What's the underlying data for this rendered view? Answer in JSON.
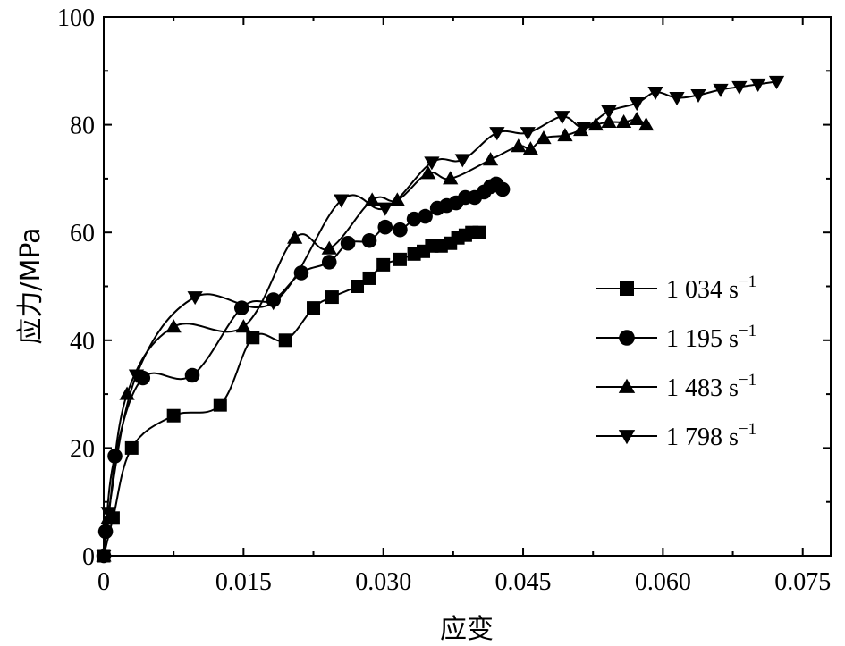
{
  "chart_data": {
    "type": "line",
    "xlabel": "应变",
    "ylabel": "应力/MPa",
    "xlim": [
      0,
      0.078
    ],
    "ylim": [
      0,
      100
    ],
    "xticks": [
      0,
      0.015,
      0.03,
      0.045,
      0.06,
      0.075
    ],
    "xtick_labels": [
      "0",
      "0.015",
      "0.030",
      "0.045",
      "0.060",
      "0.075"
    ],
    "yticks": [
      0,
      20,
      40,
      60,
      80,
      100
    ],
    "ytick_labels": [
      "0",
      "20",
      "40",
      "60",
      "80",
      "100"
    ],
    "grid": false,
    "legend_position": "right",
    "series": [
      {
        "name": "1 034 s",
        "name_sup": "−1",
        "marker": "square",
        "x": [
          0,
          0.001,
          0.003,
          0.0075,
          0.0125,
          0.016,
          0.0195,
          0.0225,
          0.0245,
          0.0272,
          0.0285,
          0.03,
          0.0318,
          0.0333,
          0.0343,
          0.0352,
          0.0362,
          0.0372,
          0.038,
          0.0388,
          0.0395,
          0.0403
        ],
        "y": [
          0,
          7,
          20,
          26,
          28,
          40.5,
          40,
          46,
          48,
          50,
          51.5,
          54,
          55,
          56,
          56.5,
          57.5,
          57.5,
          58,
          59,
          59.5,
          60,
          60
        ]
      },
      {
        "name": "1 195 s",
        "name_sup": "−1",
        "marker": "circle",
        "x": [
          0,
          0.0002,
          0.0012,
          0.0042,
          0.0095,
          0.0148,
          0.0182,
          0.0212,
          0.0242,
          0.0262,
          0.0285,
          0.0302,
          0.0318,
          0.0333,
          0.0345,
          0.0358,
          0.0368,
          0.0378,
          0.0388,
          0.0398,
          0.0408,
          0.0415,
          0.0421,
          0.0428
        ],
        "y": [
          0,
          4.5,
          18.5,
          33,
          33.5,
          46,
          47.5,
          52.5,
          54.5,
          58,
          58.5,
          61,
          60.5,
          62.5,
          63,
          64.5,
          65,
          65.5,
          66.5,
          66.5,
          67.5,
          68.5,
          69,
          68
        ]
      },
      {
        "name": "1 483 s",
        "name_sup": "−1",
        "marker": "triangle-up",
        "x": [
          0,
          0.0005,
          0.0025,
          0.0075,
          0.015,
          0.0205,
          0.0242,
          0.0288,
          0.0315,
          0.0348,
          0.0372,
          0.0415,
          0.0445,
          0.0458,
          0.0472,
          0.0495,
          0.0512,
          0.0528,
          0.0542,
          0.0558,
          0.0572,
          0.0582
        ],
        "y": [
          0,
          7,
          30,
          42.5,
          42.5,
          59,
          57,
          66,
          66,
          71,
          70,
          73.5,
          76,
          75.5,
          77.5,
          78,
          79,
          80,
          80.5,
          80.5,
          81,
          80
        ]
      },
      {
        "name": "1 798 s",
        "name_sup": "−1",
        "marker": "triangle-down",
        "x": [
          0,
          0.0005,
          0.0035,
          0.0098,
          0.0182,
          0.0255,
          0.0302,
          0.0352,
          0.0385,
          0.0422,
          0.0455,
          0.0492,
          0.0515,
          0.0542,
          0.0572,
          0.0592,
          0.0615,
          0.0638,
          0.0662,
          0.0682,
          0.0702,
          0.0722
        ],
        "y": [
          0,
          8,
          33.5,
          48,
          47,
          66,
          64.5,
          73,
          73.5,
          78.5,
          78.5,
          81.5,
          79.5,
          82.5,
          84,
          86,
          85,
          85.5,
          86.5,
          87,
          87.5,
          88
        ]
      }
    ]
  }
}
